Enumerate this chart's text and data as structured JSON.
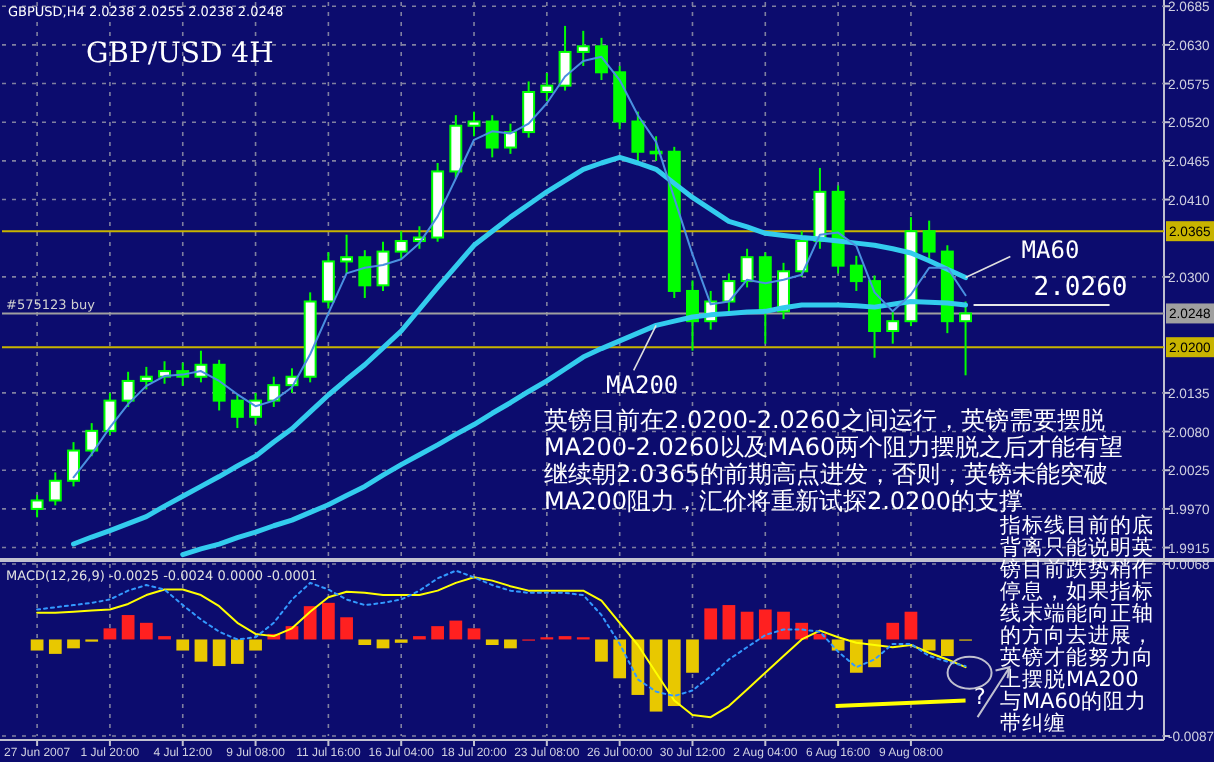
{
  "chart_data": [
    {
      "type": "candlestick",
      "title": "GBP/USD 4H",
      "color": "#00ff00",
      "grid": true,
      "tick_labels": "y",
      "categories": [
        null,
        null,
        null,
        null,
        null,
        null,
        null,
        null,
        null,
        null,
        null,
        null,
        null,
        null,
        null,
        null,
        null,
        null,
        null,
        null,
        null,
        null,
        null,
        null,
        null,
        null,
        null,
        null,
        null,
        null,
        null,
        null,
        null,
        null,
        null,
        null,
        null,
        null,
        null,
        null,
        null,
        null,
        null,
        null,
        null,
        null,
        null,
        null,
        null,
        null,
        null,
        null
      ],
      "ohlc": [
        [
          1.997,
          1.999,
          1.9958,
          1.9982
        ],
        [
          1.9982,
          2.0022,
          1.9975,
          2.001
        ],
        [
          2.001,
          2.0065,
          2.0002,
          2.0053
        ],
        [
          2.0053,
          2.0092,
          2.0045,
          2.0081
        ],
        [
          2.0081,
          2.0135,
          2.0075,
          2.0124
        ],
        [
          2.0124,
          2.0165,
          2.0115,
          2.0152
        ],
        [
          2.0152,
          2.0172,
          2.014,
          2.0158
        ],
        [
          2.0158,
          2.018,
          2.0148,
          2.0166
        ],
        [
          2.0166,
          2.0178,
          2.0145,
          2.0158
        ],
        [
          2.0158,
          2.0195,
          2.015,
          2.0175
        ],
        [
          2.0175,
          2.0182,
          2.011,
          2.0124
        ],
        [
          2.0124,
          2.0132,
          2.0085,
          2.0101
        ],
        [
          2.0101,
          2.0135,
          2.009,
          2.0124
        ],
        [
          2.0124,
          2.0158,
          2.0115,
          2.0146
        ],
        [
          2.0146,
          2.017,
          2.0135,
          2.0158
        ],
        [
          2.0158,
          2.0278,
          2.015,
          2.0265
        ],
        [
          2.0265,
          2.0335,
          2.0255,
          2.0322
        ],
        [
          2.0322,
          2.036,
          2.0305,
          2.0328
        ],
        [
          2.0328,
          2.0338,
          2.027,
          2.0288
        ],
        [
          2.0288,
          2.035,
          2.028,
          2.0336
        ],
        [
          2.0336,
          2.0365,
          2.0325,
          2.0351
        ],
        [
          2.0351,
          2.0372,
          2.034,
          2.0356
        ],
        [
          2.0356,
          2.0462,
          2.035,
          2.045
        ],
        [
          2.045,
          2.053,
          2.044,
          2.0515
        ],
        [
          2.0515,
          2.0535,
          2.05,
          2.0521
        ],
        [
          2.0521,
          2.053,
          2.047,
          2.0484
        ],
        [
          2.0484,
          2.0518,
          2.0475,
          2.0506
        ],
        [
          2.0506,
          2.0578,
          2.0498,
          2.0563
        ],
        [
          2.0563,
          2.059,
          2.055,
          2.0572
        ],
        [
          2.0572,
          2.0657,
          2.0565,
          2.062
        ],
        [
          2.062,
          2.065,
          2.06,
          2.0628
        ],
        [
          2.0628,
          2.064,
          2.058,
          2.0591
        ],
        [
          2.0591,
          2.06,
          2.051,
          2.0521
        ],
        [
          2.0521,
          2.0535,
          2.046,
          2.0478
        ],
        [
          2.0478,
          2.05,
          2.0465,
          2.0478
        ],
        [
          2.0478,
          2.0485,
          2.027,
          2.028
        ],
        [
          2.028,
          2.0295,
          2.0195,
          2.0237
        ],
        [
          2.0237,
          2.028,
          2.0225,
          2.0265
        ],
        [
          2.0265,
          2.0305,
          2.025,
          2.0294
        ],
        [
          2.0294,
          2.034,
          2.0285,
          2.0328
        ],
        [
          2.0328,
          2.0335,
          2.0205,
          2.0251
        ],
        [
          2.0251,
          2.032,
          2.024,
          2.0308
        ],
        [
          2.0308,
          2.0365,
          2.03,
          2.0351
        ],
        [
          2.0351,
          2.0455,
          2.034,
          2.0421
        ],
        [
          2.0421,
          2.043,
          2.0305,
          2.0316
        ],
        [
          2.0316,
          2.033,
          2.028,
          2.0294
        ],
        [
          2.0294,
          2.0302,
          2.0185,
          2.0223
        ],
        [
          2.0223,
          2.025,
          2.0205,
          2.0237
        ],
        [
          2.0237,
          2.0385,
          2.023,
          2.0365
        ],
        [
          2.0365,
          2.038,
          2.0325,
          2.0336
        ],
        [
          2.0336,
          2.0345,
          2.022,
          2.0237
        ],
        [
          2.0237,
          2.0265,
          2.016,
          2.0248
        ]
      ],
      "series": [
        {
          "type": "line",
          "name": "MA60",
          "color": "#33ccee",
          "values": [
            null,
            null,
            1.992,
            1.993,
            1.9939,
            1.9949,
            1.9959,
            1.9974,
            1.9988,
            2.0002,
            2.0016,
            2.0031,
            2.0045,
            2.0065,
            2.0084,
            2.0108,
            2.0132,
            2.0154,
            2.0175,
            2.0199,
            2.0223,
            2.0254,
            2.0285,
            2.0315,
            2.0345,
            2.0365,
            2.0385,
            2.0403,
            2.0421,
            2.0437,
            2.0453,
            2.0462,
            2.047,
            2.0462,
            2.0453,
            2.0433,
            2.0413,
            2.0396,
            2.0379,
            2.0371,
            2.0362,
            2.0359,
            2.0356,
            2.0354,
            2.0351,
            2.0348,
            2.0345,
            2.034,
            2.0334,
            2.0323,
            2.0311,
            2.0299
          ]
        },
        {
          "type": "line",
          "name": "MA200",
          "color": "#33ccee",
          "values": [
            null,
            null,
            null,
            null,
            null,
            null,
            null,
            null,
            1.9905,
            1.9913,
            1.992,
            1.9929,
            1.9937,
            1.9946,
            1.9954,
            1.9965,
            1.9976,
            1.9989,
            2.0002,
            2.0018,
            2.0033,
            2.0047,
            2.0061,
            2.0076,
            2.009,
            2.0106,
            2.0121,
            2.0137,
            2.0152,
            2.0169,
            2.0186,
            2.0198,
            2.0209,
            2.022,
            2.0231,
            2.0237,
            2.0243,
            2.0246,
            2.0248,
            2.025,
            2.0251,
            2.0256,
            2.026,
            2.026,
            2.026,
            2.0259,
            2.0257,
            2.0261,
            2.0265,
            2.0264,
            2.0263,
            2.026
          ]
        },
        {
          "type": "line",
          "color": "#4a90e0",
          "values": [
            null,
            null,
            2.0015,
            2.0048,
            2.0086,
            2.0119,
            2.0145,
            2.0159,
            2.0161,
            2.0166,
            2.0152,
            2.0133,
            2.0116,
            2.0124,
            2.0143,
            2.019,
            2.0248,
            2.0305,
            2.0313,
            2.0317,
            2.0325,
            2.0348,
            2.0386,
            2.044,
            2.0495,
            2.0507,
            2.0504,
            2.0518,
            2.0547,
            2.0585,
            2.0607,
            2.0613,
            2.058,
            2.053,
            2.0492,
            2.0412,
            2.0332,
            2.0261,
            2.0265,
            2.0296,
            2.0291,
            2.0296,
            2.0303,
            2.036,
            2.0363,
            2.0344,
            2.0278,
            2.0251,
            2.0275,
            2.0313,
            2.0313,
            2.0274
          ]
        }
      ],
      "ylim": [
        1.9903,
        2.0691
      ],
      "yticks": [
        2.0685,
        {
          "value": 2.063,
          "label": "2.0630"
        },
        2.0575,
        {
          "value": 2.052,
          "label": "2.0520"
        },
        2.0465,
        {
          "value": 2.041,
          "label": "2.0410"
        },
        {
          "value": 2.03,
          "label": "2.0300"
        },
        2.0135,
        {
          "value": 2.008,
          "label": "2.0080"
        },
        2.0025,
        {
          "value": 1.997,
          "label": "1.9970"
        },
        1.9915
      ],
      "ref_lines": [
        {
          "axis": "y",
          "value": 2.0365,
          "label": "2.0365",
          "color": "#c8b400"
        },
        {
          "axis": "y",
          "value": 2.0248,
          "label": "2.0248",
          "color": "#a0a0a0"
        },
        {
          "axis": "y",
          "value": 2.02,
          "label": "2.0200",
          "color": "#c8b400"
        }
      ],
      "annotations": [
        "GBPUSD,H4  2.0238 2.0255 2.0238 2.0248",
        {
          "text": "2.0260",
          "y": 2.026
        },
        "英镑目前在2.0200-2.0260之间运行，英镑需要摆脱MA200-2.0260以及MA60两个阻力摆脱之后才能有望继续朝2.0365的前期高点进发，否则，英镑未能突破MA200阻力，汇价将重新试探2.0200的支撑",
        {
          "text": "#575123 buy",
          "y": 2.0248
        }
      ]
    },
    {
      "type": "bar",
      "title": "MACD(12,26,9) -0.0025 -0.0024 0.0000 -0.0001",
      "grid": true,
      "categories": [
        "27 Jun 2007",
        null,
        null,
        null,
        "1 Jul 20:00",
        null,
        null,
        null,
        "4 Jul 12:00",
        null,
        null,
        null,
        "9 Jul 08:00",
        null,
        null,
        null,
        "11 Jul 16:00",
        null,
        null,
        null,
        "16 Jul 04:00",
        null,
        null,
        null,
        "18 Jul 20:00",
        null,
        null,
        null,
        "23 Jul 08:00",
        null,
        null,
        null,
        "26 Jul 00:00",
        null,
        null,
        null,
        "30 Jul 12:00",
        null,
        null,
        null,
        "2 Aug 04:00",
        null,
        null,
        null,
        "6 Aug 16:00",
        null,
        null,
        null,
        "9 Aug 08:00",
        null,
        null,
        null
      ],
      "series": [
        {
          "type": "bar",
          "values": [
            -0.001,
            -0.0013,
            -0.0008,
            -0.0002,
            0.001,
            0.0022,
            0.0015,
            0.0003,
            -0.001,
            -0.002,
            -0.0024,
            -0.0022,
            -0.001,
            0.0005,
            0.0012,
            0.003,
            0.0033,
            0.002,
            -0.0005,
            -0.0008,
            -0.0003,
            0.0003,
            0.0012,
            0.0017,
            0.001,
            -0.0005,
            -0.0008,
            0.0,
            0.0002,
            0.0003,
            0.0002,
            -0.002,
            -0.0035,
            -0.005,
            -0.0065,
            -0.006,
            -0.003,
            0.0028,
            0.0031,
            0.0025,
            0.0027,
            0.0025,
            0.0015,
            0.0005,
            -0.001,
            -0.003,
            -0.0025,
            0.0015,
            0.0025,
            -0.001,
            -0.0015,
            -0.0001
          ],
          "colors": [
            "#e8c800",
            "#e8c800",
            "#e8c800",
            "#e8c800",
            "#ff2020",
            "#ff2020",
            "#ff2020",
            "#ff2020",
            "#e8c800",
            "#e8c800",
            "#e8c800",
            "#e8c800",
            "#e8c800",
            "#ff2020",
            "#ff2020",
            "#ff2020",
            "#ff2020",
            "#ff2020",
            "#e8c800",
            "#e8c800",
            "#e8c800",
            "#ff2020",
            "#ff2020",
            "#ff2020",
            "#ff2020",
            "#e8c800",
            "#e8c800",
            "#ff2020",
            "#ff2020",
            "#ff2020",
            "#ff2020",
            "#e8c800",
            "#e8c800",
            "#e8c800",
            "#e8c800",
            "#e8c800",
            "#e8c800",
            "#ff2020",
            "#ff2020",
            "#ff2020",
            "#ff2020",
            "#ff2020",
            "#ff2020",
            "#ff2020",
            "#e8c800",
            "#e8c800",
            "#e8c800",
            "#ff2020",
            "#ff2020",
            "#e8c800",
            "#e8c800",
            "#e8c800"
          ]
        },
        {
          "type": "line",
          "color": "#ffff00",
          "values": [
            0.0024,
            0.0024,
            0.0025,
            0.0026,
            0.0027,
            0.0032,
            0.004,
            0.0045,
            0.0045,
            0.004,
            0.003,
            0.0015,
            0.0005,
            0.0003,
            0.001,
            0.0025,
            0.0038,
            0.0043,
            0.0042,
            0.004,
            0.004,
            0.004,
            0.0044,
            0.0051,
            0.0056,
            0.0053,
            0.0048,
            0.0044,
            0.0044,
            0.0044,
            0.0044,
            0.0035,
            0.0015,
            -0.0005,
            -0.003,
            -0.0055,
            -0.0068,
            -0.007,
            -0.006,
            -0.0045,
            -0.003,
            -0.0015,
            0.0,
            0.0008,
            0.0002,
            -0.0003,
            -0.0005,
            -0.0007,
            -0.0005,
            -0.0012,
            -0.0018,
            -0.0025
          ]
        },
        {
          "type": "line",
          "color": "#3399ff",
          "line_style": "dotted",
          "values": [
            0.0027,
            0.0029,
            0.0031,
            0.0033,
            0.0036,
            0.0044,
            0.0049,
            0.0045,
            0.0031,
            0.0018,
            0.0007,
            0.0,
            0.0002,
            0.0015,
            0.0036,
            0.0051,
            0.0045,
            0.0036,
            0.0031,
            0.0033,
            0.0036,
            0.0044,
            0.0055,
            0.0062,
            0.0056,
            0.0049,
            0.0044,
            0.0042,
            0.0042,
            0.0042,
            0.004,
            0.0022,
            -0.0004,
            -0.0036,
            -0.0047,
            -0.0051,
            -0.0046,
            -0.0033,
            -0.0018,
            -0.0007,
            0.0004,
            0.0009,
            0.0009,
            0.0007,
            -0.0011,
            -0.0025,
            -0.0018,
            -0.0004,
            -0.0004,
            -0.0015,
            -0.002,
            -0.0024
          ]
        }
      ],
      "ylim": [
        -0.0087,
        0.0068
      ],
      "yticks": [
        0.0068,
        -0.0087
      ],
      "annotations": [
        "指标线目前的底背离只能说明英镑目前跌势稍作停息，如果指标线末端能向正轴的方向去进展，英镑才能努力向上摆脱MA200与MA60的阻力带纠缠",
        "?"
      ]
    }
  ]
}
